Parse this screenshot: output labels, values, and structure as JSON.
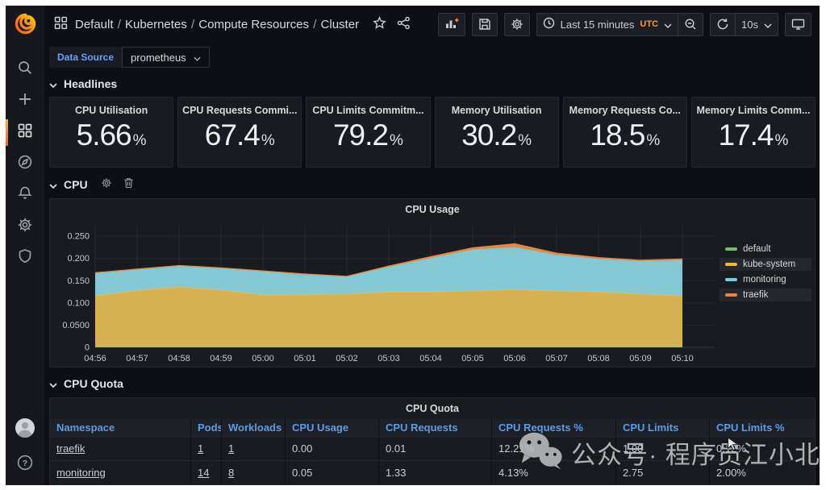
{
  "breadcrumb": {
    "items": [
      "Default",
      "Kubernetes",
      "Compute Resources",
      "Cluster"
    ]
  },
  "toolbar": {
    "time_range": "Last 15 minutes",
    "timezone": "UTC",
    "refresh_interval": "10s"
  },
  "variables": {
    "label": "Data Source",
    "value": "prometheus"
  },
  "sections": {
    "headlines": "Headlines",
    "cpu": "CPU",
    "cpu_quota": "CPU Quota"
  },
  "stats": [
    {
      "title": "CPU Utilisation",
      "value": "5.66",
      "unit": "%"
    },
    {
      "title": "CPU Requests Commi...",
      "value": "67.4",
      "unit": "%"
    },
    {
      "title": "CPU Limits Commitm...",
      "value": "79.2",
      "unit": "%"
    },
    {
      "title": "Memory Utilisation",
      "value": "30.2",
      "unit": "%"
    },
    {
      "title": "Memory Requests Co...",
      "value": "18.5",
      "unit": "%"
    },
    {
      "title": "Memory Limits Comm...",
      "value": "17.4",
      "unit": "%"
    }
  ],
  "chart_data": {
    "type": "area",
    "stacked": true,
    "title": "CPU Usage",
    "x": [
      "04:56",
      "04:57",
      "04:58",
      "04:59",
      "05:00",
      "05:01",
      "05:02",
      "05:03",
      "05:04",
      "05:05",
      "05:06",
      "05:07",
      "05:08",
      "05:09",
      "05:10"
    ],
    "series": [
      {
        "name": "default",
        "color": "#73bf69",
        "fill": "#73bf69",
        "highlighted": false,
        "values": [
          0.001,
          0.001,
          0.001,
          0.001,
          0.001,
          0.001,
          0.001,
          0.001,
          0.001,
          0.001,
          0.001,
          0.001,
          0.001,
          0.001,
          0.001
        ]
      },
      {
        "name": "kube-system",
        "color": "#eab839",
        "fill": "#e2b954",
        "highlighted": true,
        "values": [
          0.115,
          0.127,
          0.135,
          0.128,
          0.117,
          0.118,
          0.119,
          0.124,
          0.124,
          0.126,
          0.129,
          0.126,
          0.124,
          0.119,
          0.115
        ]
      },
      {
        "name": "monitoring",
        "color": "#6ed0e0",
        "fill": "#8ad2de",
        "highlighted": false,
        "values": [
          0.051,
          0.047,
          0.047,
          0.049,
          0.053,
          0.045,
          0.039,
          0.056,
          0.076,
          0.093,
          0.095,
          0.081,
          0.074,
          0.074,
          0.08
        ]
      },
      {
        "name": "traefik",
        "color": "#ef843c",
        "fill": "#ef8d49",
        "highlighted": true,
        "values": [
          0.001,
          0.001,
          0.001,
          0.001,
          0.001,
          0.001,
          0.001,
          0.002,
          0.003,
          0.004,
          0.008,
          0.004,
          0.003,
          0.002,
          0.003
        ]
      }
    ],
    "ylim": [
      0,
      0.272
    ],
    "yticks": [
      {
        "v": 0,
        "label": "0"
      },
      {
        "v": 0.05,
        "label": "0.0500"
      },
      {
        "v": 0.1,
        "label": "0.100"
      },
      {
        "v": 0.15,
        "label": "0.150"
      },
      {
        "v": 0.2,
        "label": "0.200"
      },
      {
        "v": 0.25,
        "label": "0.250"
      }
    ],
    "grid": true,
    "legend_position": "right"
  },
  "quota": {
    "panel_title": "CPU Quota",
    "columns": [
      "Namespace",
      "Pods",
      "Workloads",
      "CPU Usage",
      "CPU Requests",
      "CPU Requests %",
      "CPU Limits",
      "CPU Limits %"
    ],
    "link_columns": [
      0,
      1,
      2
    ],
    "rows": [
      [
        "traefik",
        "1",
        "1",
        "0.00",
        "0.01",
        "12.21%",
        "1.00",
        "0.12%"
      ],
      [
        "monitoring",
        "14",
        "8",
        "0.05",
        "1.33",
        "4.13%",
        "2.75",
        "2.00%"
      ]
    ]
  },
  "watermark": {
    "text": "公众号· 程序员江小北"
  }
}
